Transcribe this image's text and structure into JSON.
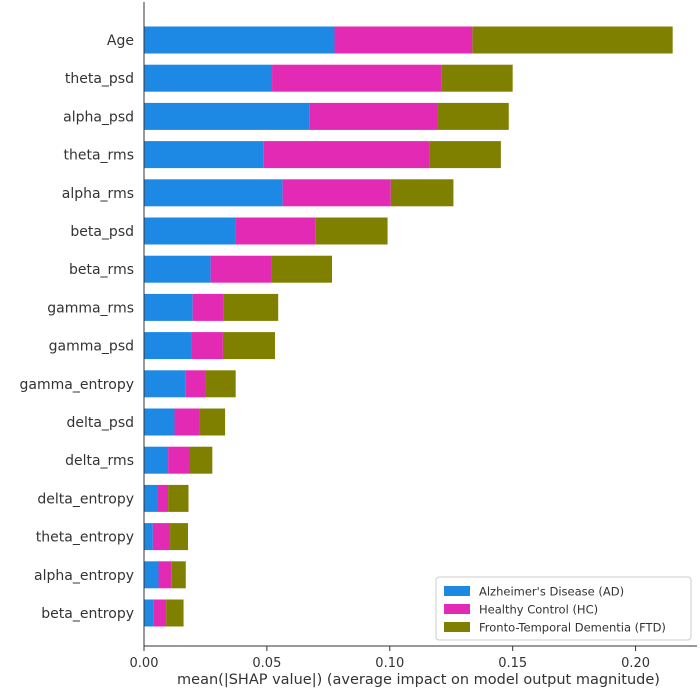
{
  "chart_data": {
    "type": "bar",
    "orientation": "horizontal",
    "stacked": true,
    "title": "",
    "xlabel": "mean(|SHAP value|) (average impact on model output magnitude)",
    "ylabel": "",
    "xlim": [
      0,
      0.225
    ],
    "xticks": [
      "0.00",
      "0.05",
      "0.10",
      "0.15",
      "0.20"
    ],
    "xtick_values": [
      0,
      0.05,
      0.1,
      0.15,
      0.2
    ],
    "grid": false,
    "legend_position": "bottom-right",
    "categories": [
      "Age",
      "theta_psd",
      "alpha_psd",
      "theta_rms",
      "alpha_rms",
      "beta_psd",
      "beta_rms",
      "gamma_rms",
      "gamma_psd",
      "gamma_entropy",
      "delta_psd",
      "delta_rms",
      "delta_entropy",
      "theta_entropy",
      "alpha_entropy",
      "beta_entropy"
    ],
    "series": [
      {
        "name": "Alzheimer's Disease (AD)",
        "color": "#1e88e5",
        "values": [
          0.0775,
          0.0521,
          0.0674,
          0.0485,
          0.0564,
          0.0372,
          0.0271,
          0.0198,
          0.0193,
          0.0168,
          0.0124,
          0.0098,
          0.0053,
          0.0036,
          0.0059,
          0.0038
        ]
      },
      {
        "name": "Healthy Control (HC)",
        "color": "#e32ab4",
        "values": [
          0.0561,
          0.0689,
          0.052,
          0.0675,
          0.044,
          0.0325,
          0.0246,
          0.0125,
          0.0128,
          0.0084,
          0.01,
          0.0085,
          0.0045,
          0.007,
          0.0052,
          0.0052
        ]
      },
      {
        "name": "Fronto-Temporal Dementia (FTD)",
        "color": "#808000",
        "values": [
          0.0815,
          0.029,
          0.029,
          0.0292,
          0.0255,
          0.0294,
          0.0248,
          0.0223,
          0.0212,
          0.0121,
          0.0106,
          0.0095,
          0.0083,
          0.0073,
          0.0059,
          0.0071
        ]
      }
    ]
  }
}
